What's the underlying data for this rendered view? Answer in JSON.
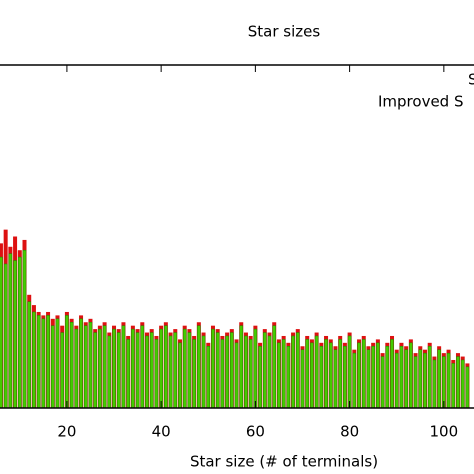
{
  "chart_data": {
    "type": "bar",
    "title": "Star sizes",
    "xlabel": "Star size (# of terminals)",
    "x": [
      6,
      7,
      8,
      9,
      10,
      11,
      12,
      13,
      14,
      15,
      16,
      17,
      18,
      19,
      20,
      21,
      22,
      23,
      24,
      25,
      26,
      27,
      28,
      29,
      30,
      31,
      32,
      33,
      34,
      35,
      36,
      37,
      38,
      39,
      40,
      41,
      42,
      43,
      44,
      45,
      46,
      47,
      48,
      49,
      50,
      51,
      52,
      53,
      54,
      55,
      56,
      57,
      58,
      59,
      60,
      61,
      62,
      63,
      64,
      65,
      66,
      67,
      68,
      69,
      70,
      71,
      72,
      73,
      74,
      75,
      76,
      77,
      78,
      79,
      80,
      81,
      82,
      83,
      84,
      85,
      86,
      87,
      88,
      89,
      90,
      91,
      92,
      93,
      94,
      95,
      96,
      97,
      98,
      99,
      100,
      101,
      102,
      103,
      104,
      105
    ],
    "series": [
      {
        "name": "S",
        "color": "#dd1111",
        "values": [
          48,
          52,
          47,
          50,
          46,
          49,
          33,
          30,
          28,
          27,
          28,
          26,
          27,
          24,
          28,
          26,
          24,
          27,
          25,
          26,
          23,
          24,
          25,
          22,
          24,
          23,
          25,
          21,
          24,
          23,
          25,
          22,
          23,
          21,
          24,
          25,
          22,
          23,
          20,
          24,
          23,
          21,
          25,
          22,
          19,
          24,
          23,
          21,
          22,
          23,
          20,
          25,
          22,
          21,
          24,
          19,
          23,
          22,
          25,
          20,
          21,
          19,
          22,
          23,
          18,
          21,
          20,
          22,
          19,
          21,
          20,
          18,
          21,
          19,
          22,
          17,
          20,
          21,
          18,
          19,
          20,
          16,
          19,
          21,
          17,
          19,
          18,
          20,
          16,
          18,
          17,
          19,
          15,
          18,
          16,
          17,
          14,
          16,
          15,
          13
        ]
      },
      {
        "name": "Improved S",
        "color": "#44cc00",
        "values": [
          44,
          42,
          45,
          43,
          44,
          46,
          31,
          28,
          27,
          26,
          27,
          24,
          26,
          22,
          27,
          25,
          23,
          26,
          24,
          25,
          22,
          23,
          24,
          21,
          23,
          22,
          24,
          20,
          23,
          22,
          24,
          21,
          22,
          20,
          23,
          24,
          21,
          22,
          19,
          23,
          22,
          20,
          24,
          21,
          18,
          23,
          22,
          20,
          21,
          22,
          19,
          24,
          21,
          20,
          23,
          18,
          22,
          21,
          24,
          19,
          20,
          18,
          21,
          22,
          17,
          20,
          19,
          21,
          18,
          20,
          19,
          17,
          20,
          18,
          21,
          16,
          19,
          20,
          17,
          18,
          19,
          15,
          18,
          20,
          16,
          18,
          17,
          19,
          15,
          17,
          16,
          18,
          14,
          17,
          15,
          16,
          13,
          15,
          14,
          12
        ]
      }
    ],
    "xlim": [
      5.8,
      106.4
    ],
    "ylim": [
      0,
      100
    ],
    "xticks": [
      20,
      40,
      60,
      80,
      100
    ]
  }
}
